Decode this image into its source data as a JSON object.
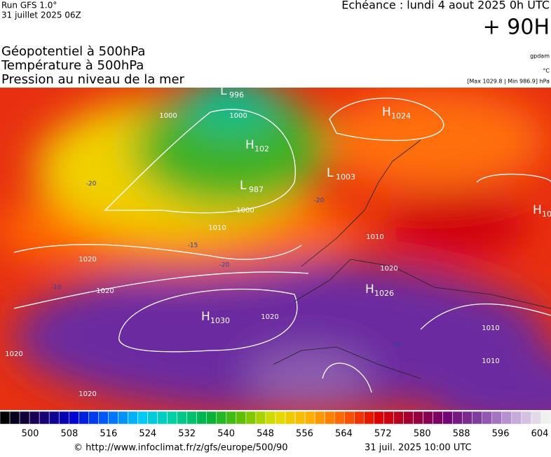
{
  "header": {
    "run": "Run GFS 1.0°",
    "run_date": "31 juillet 2025 06Z",
    "valid": "Echéance : lundi 4 aout 2025 0h UTC",
    "lead": "+ 90H",
    "fields": [
      "Géopotentiel à 500hPa",
      "Température à 500hPa",
      "Pression au niveau de la mer"
    ],
    "units": [
      "gpdam",
      "°C",
      "[Max 1029.8 | Min 986.9] hPa"
    ]
  },
  "centers": [
    {
      "type": "L",
      "value": 996
    },
    {
      "type": "H",
      "value": 1024
    },
    {
      "type": "H",
      "value": "102"
    },
    {
      "type": "L",
      "value": 1003
    },
    {
      "type": "L",
      "value": 987
    },
    {
      "type": "H",
      "value": 1026
    },
    {
      "type": "H",
      "value": 1030
    },
    {
      "type": "H",
      "value": "10"
    }
  ],
  "isobar_labels": [
    1000,
    1000,
    1000,
    1010,
    1020,
    1020,
    1020,
    1020,
    1020,
    1010,
    1010,
    1020,
    1010
  ],
  "temp_labels": [
    -20,
    -20,
    -15,
    -10,
    -20,
    -20
  ],
  "scale": {
    "ticks": [
      500,
      508,
      516,
      524,
      532,
      540,
      548,
      556,
      564,
      572,
      580,
      588,
      596,
      604
    ],
    "colors": [
      "#000000",
      "#1a0060",
      "#0000d0",
      "#0060ff",
      "#00c8ff",
      "#00d0a0",
      "#00b040",
      "#60c000",
      "#e0e000",
      "#ffb000",
      "#ff6000",
      "#e00000",
      "#a00030",
      "#700070",
      "#8040a0",
      "#c0a0d8",
      "#f0f0f0"
    ]
  },
  "footer": {
    "url": "© http://www.infoclimat.fr/z/gfs/europe/500/90",
    "date": "31 juil. 2025 10:00 UTC"
  }
}
